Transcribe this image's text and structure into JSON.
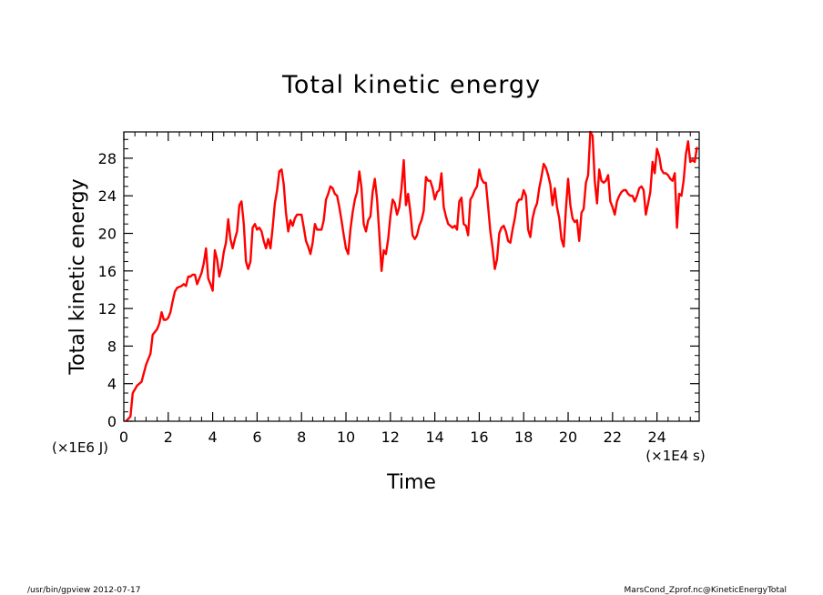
{
  "chart_data": {
    "type": "line",
    "title": "Total kinetic energy",
    "xlabel": "Time",
    "ylabel": "Total kinetic energy",
    "x_unit": "(×1E4 s)",
    "y_unit": "(×1E6 J)",
    "xlim": [
      0,
      25.9
    ],
    "ylim": [
      0,
      30.8
    ],
    "x_ticks": [
      0,
      2,
      4,
      6,
      8,
      10,
      12,
      14,
      16,
      18,
      20,
      22,
      24
    ],
    "y_ticks": [
      0,
      4,
      8,
      12,
      16,
      20,
      24,
      28
    ],
    "grid": false,
    "series": [
      {
        "color": "#ff0000",
        "points": [
          [
            0.1,
            0
          ],
          [
            0.3,
            0.5
          ],
          [
            0.4,
            3.0
          ],
          [
            0.6,
            3.8
          ],
          [
            0.8,
            4.2
          ],
          [
            1.0,
            6.0
          ],
          [
            1.1,
            6.6
          ],
          [
            1.2,
            7.2
          ],
          [
            1.3,
            9.2
          ],
          [
            1.5,
            9.8
          ],
          [
            1.6,
            10.4
          ],
          [
            1.7,
            11.6
          ],
          [
            1.8,
            10.8
          ],
          [
            1.9,
            10.8
          ],
          [
            2.0,
            11.0
          ],
          [
            2.1,
            11.6
          ],
          [
            2.2,
            12.8
          ],
          [
            2.3,
            13.8
          ],
          [
            2.4,
            14.2
          ],
          [
            2.6,
            14.4
          ],
          [
            2.7,
            14.6
          ],
          [
            2.8,
            14.4
          ],
          [
            2.9,
            15.4
          ],
          [
            3.0,
            15.4
          ],
          [
            3.1,
            15.6
          ],
          [
            3.2,
            15.6
          ],
          [
            3.3,
            14.6
          ],
          [
            3.4,
            15.2
          ],
          [
            3.5,
            15.8
          ],
          [
            3.6,
            16.8
          ],
          [
            3.7,
            18.4
          ],
          [
            3.8,
            15.2
          ],
          [
            3.9,
            14.6
          ],
          [
            4.0,
            13.9
          ],
          [
            4.1,
            18.2
          ],
          [
            4.2,
            17.2
          ],
          [
            4.3,
            15.4
          ],
          [
            4.4,
            16.4
          ],
          [
            4.5,
            18.0
          ],
          [
            4.6,
            19.0
          ],
          [
            4.7,
            21.5
          ],
          [
            4.8,
            19.4
          ],
          [
            4.9,
            18.4
          ],
          [
            5.0,
            19.4
          ],
          [
            5.1,
            20.2
          ],
          [
            5.2,
            23.0
          ],
          [
            5.3,
            23.4
          ],
          [
            5.4,
            21.0
          ],
          [
            5.5,
            17.0
          ],
          [
            5.6,
            16.2
          ],
          [
            5.7,
            17.0
          ],
          [
            5.8,
            20.6
          ],
          [
            5.9,
            21.0
          ],
          [
            6.0,
            20.4
          ],
          [
            6.1,
            20.6
          ],
          [
            6.2,
            20.2
          ],
          [
            6.3,
            19.2
          ],
          [
            6.4,
            18.4
          ],
          [
            6.5,
            19.4
          ],
          [
            6.6,
            18.4
          ],
          [
            6.7,
            20.6
          ],
          [
            6.8,
            23.2
          ],
          [
            6.9,
            24.6
          ],
          [
            7.0,
            26.6
          ],
          [
            7.1,
            26.8
          ],
          [
            7.2,
            25.2
          ],
          [
            7.3,
            22.2
          ],
          [
            7.4,
            20.2
          ],
          [
            7.5,
            21.4
          ],
          [
            7.6,
            20.8
          ],
          [
            7.7,
            21.6
          ],
          [
            7.8,
            22.0
          ],
          [
            7.9,
            22.0
          ],
          [
            8.0,
            22.0
          ],
          [
            8.1,
            20.6
          ],
          [
            8.2,
            19.2
          ],
          [
            8.3,
            18.6
          ],
          [
            8.4,
            17.8
          ],
          [
            8.5,
            19.0
          ],
          [
            8.6,
            21.0
          ],
          [
            8.7,
            20.4
          ],
          [
            8.8,
            20.4
          ],
          [
            8.9,
            20.4
          ],
          [
            9.0,
            21.4
          ],
          [
            9.1,
            23.6
          ],
          [
            9.2,
            24.2
          ],
          [
            9.3,
            25.0
          ],
          [
            9.4,
            24.8
          ],
          [
            9.5,
            24.2
          ],
          [
            9.6,
            24.0
          ],
          [
            9.7,
            22.8
          ],
          [
            9.8,
            21.4
          ],
          [
            9.9,
            19.8
          ],
          [
            10.0,
            18.4
          ],
          [
            10.1,
            17.8
          ],
          [
            10.2,
            20.4
          ],
          [
            10.3,
            22.2
          ],
          [
            10.4,
            23.6
          ],
          [
            10.5,
            24.4
          ],
          [
            10.6,
            26.6
          ],
          [
            10.7,
            24.8
          ],
          [
            10.8,
            21.0
          ],
          [
            10.9,
            20.2
          ],
          [
            11.0,
            21.4
          ],
          [
            11.1,
            21.8
          ],
          [
            11.2,
            24.4
          ],
          [
            11.3,
            25.8
          ],
          [
            11.4,
            23.6
          ],
          [
            11.5,
            20.0
          ],
          [
            11.6,
            16.0
          ],
          [
            11.7,
            18.2
          ],
          [
            11.8,
            17.8
          ],
          [
            11.9,
            19.4
          ],
          [
            12.0,
            21.8
          ],
          [
            12.1,
            23.6
          ],
          [
            12.2,
            23.2
          ],
          [
            12.3,
            22.0
          ],
          [
            12.4,
            22.8
          ],
          [
            12.5,
            24.8
          ],
          [
            12.6,
            27.8
          ],
          [
            12.7,
            23.0
          ],
          [
            12.8,
            24.2
          ],
          [
            12.9,
            22.2
          ],
          [
            13.0,
            19.8
          ],
          [
            13.1,
            19.4
          ],
          [
            13.2,
            19.8
          ],
          [
            13.3,
            20.8
          ],
          [
            13.4,
            21.4
          ],
          [
            13.5,
            22.4
          ],
          [
            13.6,
            26.0
          ],
          [
            13.7,
            25.6
          ],
          [
            13.8,
            25.6
          ],
          [
            13.9,
            24.8
          ],
          [
            14.0,
            23.6
          ],
          [
            14.1,
            24.4
          ],
          [
            14.2,
            24.6
          ],
          [
            14.3,
            26.4
          ],
          [
            14.4,
            22.8
          ],
          [
            14.5,
            21.8
          ],
          [
            14.6,
            21.0
          ],
          [
            14.7,
            20.8
          ],
          [
            14.8,
            20.6
          ],
          [
            14.9,
            20.8
          ],
          [
            15.0,
            20.4
          ],
          [
            15.1,
            23.4
          ],
          [
            15.2,
            23.8
          ],
          [
            15.3,
            21.0
          ],
          [
            15.4,
            20.8
          ],
          [
            15.5,
            19.8
          ],
          [
            15.6,
            23.6
          ],
          [
            15.7,
            24.0
          ],
          [
            15.8,
            24.6
          ],
          [
            15.9,
            25.0
          ],
          [
            16.0,
            26.8
          ],
          [
            16.1,
            25.8
          ],
          [
            16.2,
            25.4
          ],
          [
            16.3,
            25.4
          ],
          [
            16.4,
            22.8
          ],
          [
            16.5,
            20.2
          ],
          [
            16.6,
            18.4
          ],
          [
            16.7,
            16.2
          ],
          [
            16.8,
            17.2
          ],
          [
            16.9,
            20.0
          ],
          [
            17.0,
            20.6
          ],
          [
            17.1,
            20.8
          ],
          [
            17.2,
            20.2
          ],
          [
            17.3,
            19.2
          ],
          [
            17.4,
            19.0
          ],
          [
            17.5,
            20.4
          ],
          [
            17.6,
            21.6
          ],
          [
            17.7,
            23.2
          ],
          [
            17.8,
            23.6
          ],
          [
            17.9,
            23.6
          ],
          [
            18.0,
            24.6
          ],
          [
            18.1,
            24.0
          ],
          [
            18.2,
            20.4
          ],
          [
            18.3,
            19.6
          ],
          [
            18.4,
            21.6
          ],
          [
            18.5,
            22.6
          ],
          [
            18.6,
            23.2
          ],
          [
            18.7,
            24.8
          ],
          [
            18.8,
            26.0
          ],
          [
            18.9,
            27.4
          ],
          [
            19.0,
            27.0
          ],
          [
            19.1,
            26.2
          ],
          [
            19.2,
            25.2
          ],
          [
            19.3,
            23.0
          ],
          [
            19.4,
            24.8
          ],
          [
            19.5,
            22.8
          ],
          [
            19.6,
            21.6
          ],
          [
            19.7,
            19.4
          ],
          [
            19.8,
            18.6
          ],
          [
            19.9,
            22.6
          ],
          [
            20.0,
            25.8
          ],
          [
            20.1,
            23.0
          ],
          [
            20.2,
            21.6
          ],
          [
            20.3,
            21.2
          ],
          [
            20.4,
            21.4
          ],
          [
            20.5,
            19.2
          ],
          [
            20.6,
            22.2
          ],
          [
            20.7,
            22.6
          ],
          [
            20.8,
            25.4
          ],
          [
            20.9,
            26.2
          ],
          [
            21.0,
            30.8
          ],
          [
            21.1,
            30.4
          ],
          [
            21.2,
            25.6
          ],
          [
            21.3,
            23.2
          ],
          [
            21.4,
            26.8
          ],
          [
            21.5,
            25.6
          ],
          [
            21.6,
            25.4
          ],
          [
            21.7,
            25.6
          ],
          [
            21.8,
            26.2
          ],
          [
            21.9,
            23.4
          ],
          [
            22.0,
            22.8
          ],
          [
            22.1,
            22.0
          ],
          [
            22.2,
            23.4
          ],
          [
            22.3,
            24.0
          ],
          [
            22.4,
            24.4
          ],
          [
            22.5,
            24.6
          ],
          [
            22.6,
            24.6
          ],
          [
            22.7,
            24.2
          ],
          [
            22.8,
            24.0
          ],
          [
            22.9,
            24.0
          ],
          [
            23.0,
            23.4
          ],
          [
            23.1,
            24.0
          ],
          [
            23.2,
            24.8
          ],
          [
            23.3,
            25.0
          ],
          [
            23.4,
            24.6
          ],
          [
            23.5,
            22.0
          ],
          [
            23.6,
            23.2
          ],
          [
            23.7,
            24.4
          ],
          [
            23.8,
            27.6
          ],
          [
            23.9,
            26.4
          ],
          [
            24.0,
            29.0
          ],
          [
            24.1,
            28.2
          ],
          [
            24.2,
            26.8
          ],
          [
            24.3,
            26.4
          ],
          [
            24.4,
            26.4
          ],
          [
            24.5,
            26.2
          ],
          [
            24.6,
            25.8
          ],
          [
            24.7,
            25.6
          ],
          [
            24.8,
            26.4
          ],
          [
            24.9,
            20.6
          ],
          [
            25.0,
            24.2
          ],
          [
            25.1,
            24.0
          ],
          [
            25.2,
            25.6
          ],
          [
            25.3,
            28.4
          ],
          [
            25.4,
            29.8
          ],
          [
            25.5,
            27.6
          ],
          [
            25.6,
            27.8
          ],
          [
            25.7,
            27.6
          ],
          [
            25.8,
            29.2
          ]
        ]
      }
    ]
  },
  "footer": {
    "left": "/usr/bin/gpview   2012-07-17",
    "right": "MarsCond_Zprof.nc@KineticEnergyTotal"
  }
}
